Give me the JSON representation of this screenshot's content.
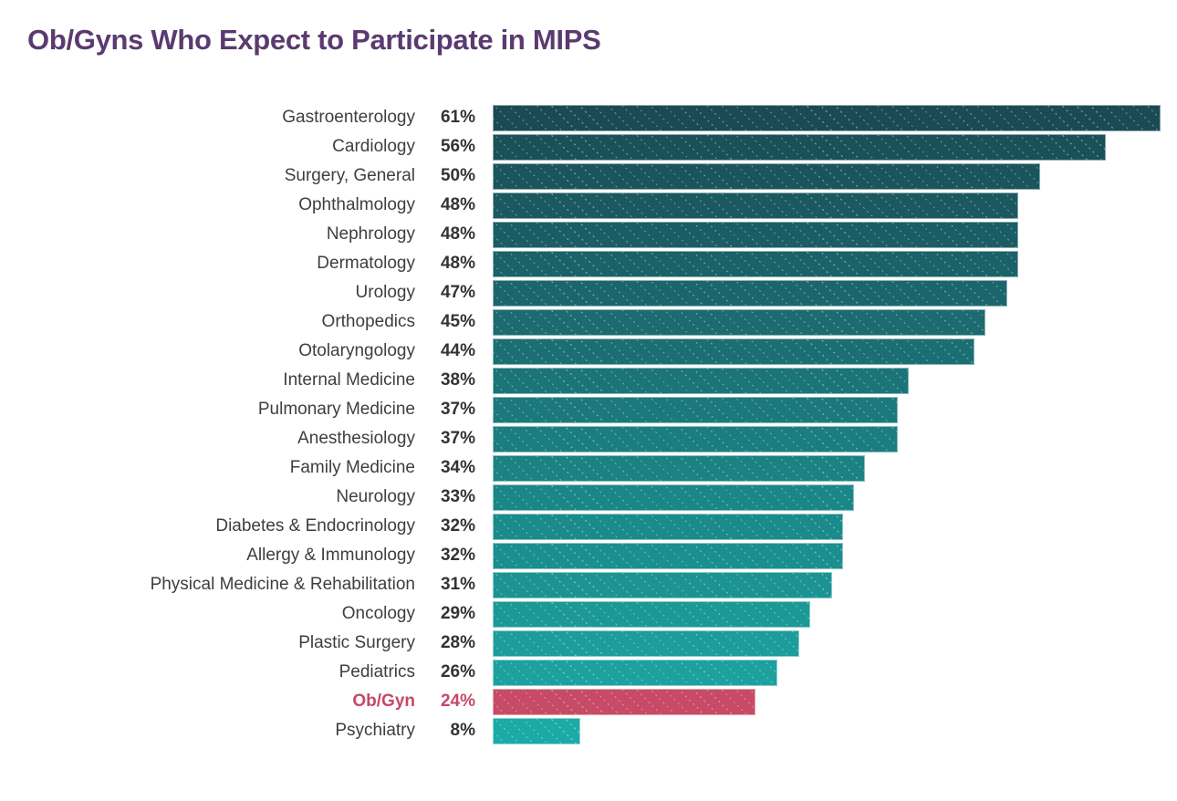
{
  "title": {
    "text": "Ob/Gyns Who Expect to Participate in MIPS",
    "color": "#5b3a70"
  },
  "chart_data": {
    "type": "bar",
    "orientation": "horizontal",
    "title": "Ob/Gyns Who Expect to Participate in MIPS",
    "categories": [
      "Gastroenterology",
      "Cardiology",
      "Surgery, General",
      "Ophthalmology",
      "Nephrology",
      "Dermatology",
      "Urology",
      "Orthopedics",
      "Otolaryngology",
      "Internal Medicine",
      "Pulmonary Medicine",
      "Anesthesiology",
      "Family Medicine",
      "Neurology",
      "Diabetes & Endocrinology",
      "Allergy & Immunology",
      "Physical Medicine & Rehabilitation",
      "Oncology",
      "Plastic Surgery",
      "Pediatrics",
      "Ob/Gyn",
      "Psychiatry"
    ],
    "values": [
      61,
      56,
      50,
      48,
      48,
      48,
      47,
      45,
      44,
      38,
      37,
      37,
      34,
      33,
      32,
      32,
      31,
      29,
      28,
      26,
      24,
      8
    ],
    "value_suffix": "%",
    "value_labels_shown": true,
    "highlight_category": "Ob/Gyn",
    "xlim": [
      0,
      61
    ],
    "grid": false,
    "legend": false,
    "xlabel": "",
    "ylabel": ""
  },
  "style": {
    "bar_gradient_top": "#1a4b54",
    "bar_gradient_bottom": "#1caaa7",
    "highlight_bar_color": "#c74b66",
    "highlight_text_color": "#c6486a",
    "category_label_color": "#3e3e3e",
    "value_label_color": "#333333",
    "title_color": "#5b3a70"
  }
}
